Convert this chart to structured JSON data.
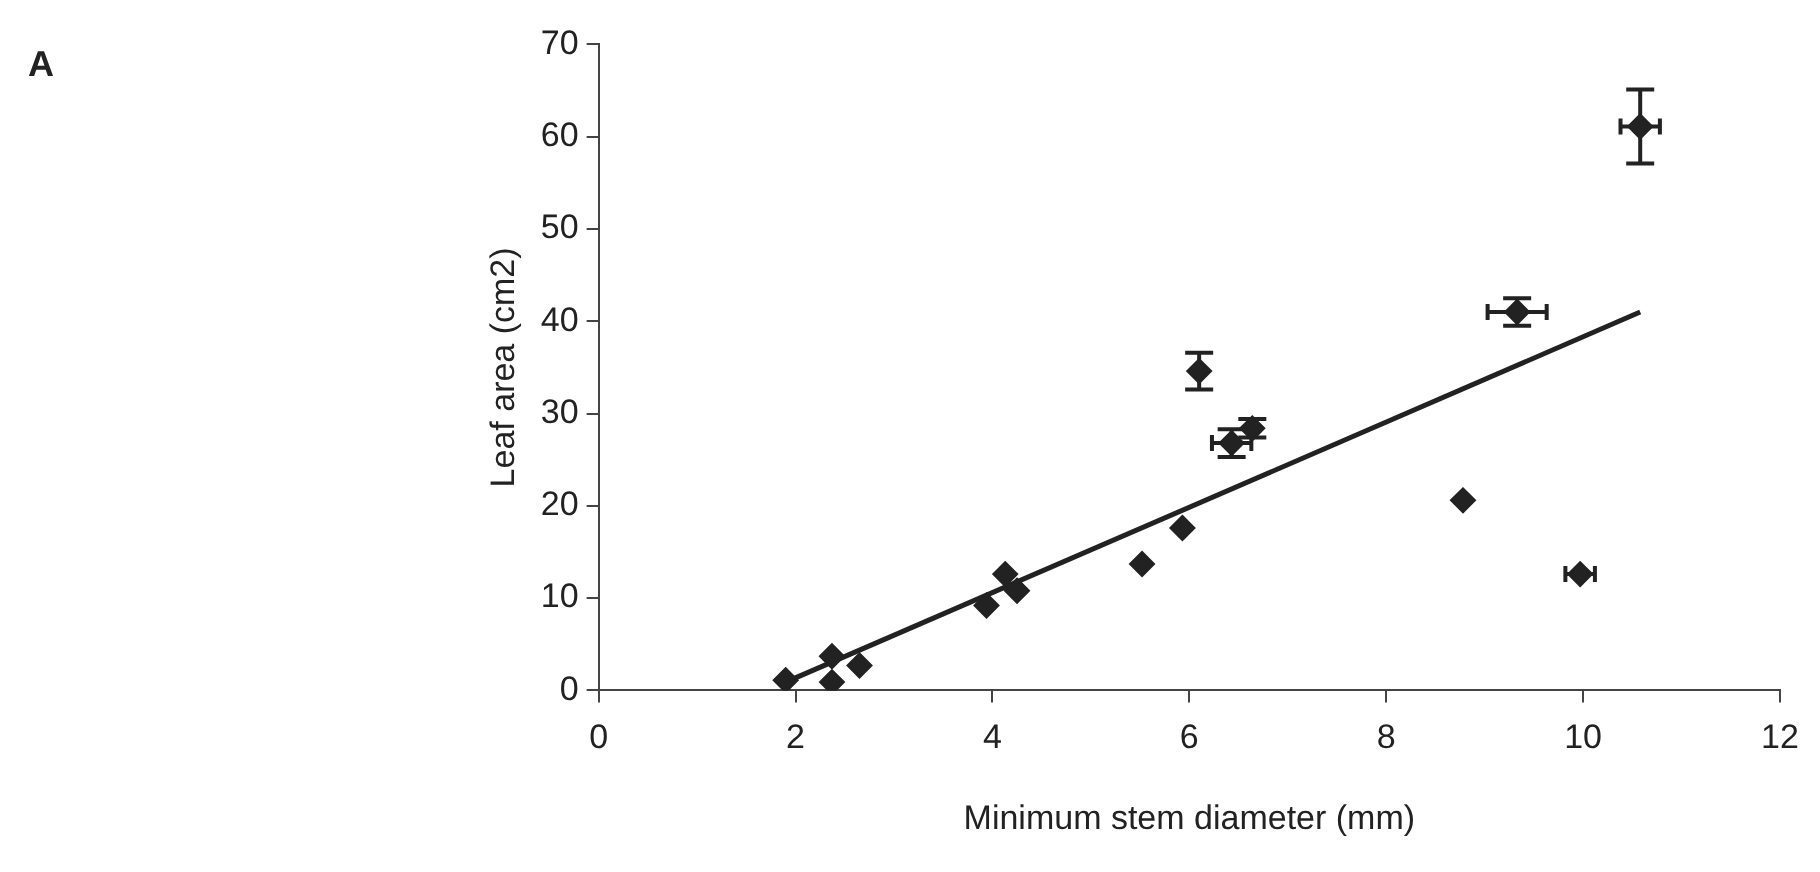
{
  "chart_data": {
    "type": "scatter",
    "xlabel": "Minimum stem diameter (mm)",
    "ylabel": "Leaf area (cm2)",
    "annotations": [
      "A"
    ],
    "xlim": [
      0,
      12
    ],
    "xticks": [
      0,
      2,
      4,
      6,
      8,
      10,
      12
    ],
    "ylim": [
      0,
      70
    ],
    "yticks": [
      0,
      10,
      20,
      30,
      40,
      50,
      60,
      70
    ],
    "grid": false,
    "legend": false,
    "marker": "diamond",
    "series": [
      {
        "type": "scatter",
        "color": "#222222",
        "x": [
          1.9,
          2.37,
          2.37,
          2.65,
          3.94,
          4.13,
          4.25,
          5.52,
          5.93,
          6.1,
          6.43,
          6.64,
          8.78,
          9.97,
          9.33,
          10.58
        ],
        "values": [
          1.1,
          0.9,
          3.7,
          2.7,
          9.2,
          12.6,
          10.8,
          13.7,
          17.6,
          34.6,
          26.8,
          28.4,
          20.6,
          12.6,
          41,
          61.1
        ],
        "errors": [
          null,
          null,
          null,
          null,
          null,
          null,
          null,
          null,
          null,
          2,
          1.5,
          1,
          null,
          null,
          1.5,
          4
        ],
        "xerrors": [
          null,
          null,
          null,
          null,
          null,
          null,
          null,
          null,
          null,
          null,
          0.2,
          null,
          null,
          0.15,
          0.3,
          0.2
        ]
      },
      {
        "type": "line",
        "color": "#222222",
        "marker": "none",
        "line_style": "solid",
        "x": [
          1.9,
          10.58
        ],
        "values": [
          0.9,
          41
        ]
      }
    ]
  }
}
